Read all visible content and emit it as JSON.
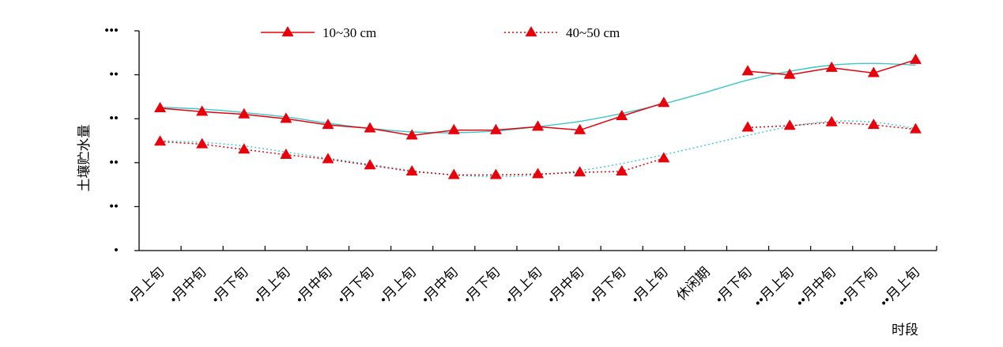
{
  "chart_data": {
    "type": "line",
    "ylabel": "土壤贮水量",
    "xlabel": "时段",
    "y_tick_labels": [
      "•",
      "••",
      "••",
      "••",
      "••",
      "•••"
    ],
    "x_tick_labels": [
      "•月上旬",
      "•月中旬",
      "•月下旬",
      "•月上旬",
      "•月中旬",
      "•月下旬",
      "•月上旬",
      "•月中旬",
      "•月下旬",
      "•月上旬",
      "•月中旬",
      "•月下旬",
      "•月上旬",
      "休闲期",
      "•月下旬",
      "••月上旬",
      "••月中旬",
      "••月下旬",
      "••月上旬"
    ],
    "ylim": [
      0,
      250
    ],
    "grid": false,
    "legend_position": "top",
    "series": [
      {
        "name": "10~30 cm",
        "style": "solid",
        "color": "#e8000b",
        "marker": "triangle",
        "x_index": [
          0,
          1,
          2,
          3,
          4,
          5,
          6,
          7,
          8,
          9,
          10,
          11,
          12,
          14,
          15,
          16,
          17,
          18
        ],
        "values": [
          162,
          158,
          155,
          150,
          143,
          139,
          131,
          137,
          137,
          141,
          137,
          153,
          168,
          204,
          200,
          208,
          202,
          217
        ]
      },
      {
        "name": "40~50 cm",
        "style": "dotted",
        "color": "#e8000b",
        "marker": "triangle",
        "x_index": [
          0,
          1,
          2,
          3,
          4,
          5,
          6,
          7,
          8,
          9,
          10,
          11,
          12,
          14,
          15,
          16,
          17,
          18
        ],
        "values": [
          124,
          121,
          115,
          109,
          104,
          97,
          90,
          86,
          86,
          87,
          89,
          90,
          105,
          140,
          142,
          146,
          143,
          138
        ]
      }
    ],
    "trend_lines": [
      {
        "color": "#3cc8c8",
        "style": "solid",
        "points": [
          [
            0,
            163
          ],
          [
            1,
            161
          ],
          [
            2,
            157
          ],
          [
            3,
            152
          ],
          [
            4,
            145
          ],
          [
            5,
            139
          ],
          [
            6,
            135
          ],
          [
            7,
            134
          ],
          [
            8,
            136
          ],
          [
            9,
            141
          ],
          [
            10,
            147
          ],
          [
            11,
            156
          ],
          [
            12,
            167
          ],
          [
            13,
            180
          ],
          [
            14,
            194
          ],
          [
            15,
            204
          ],
          [
            16,
            211
          ],
          [
            17,
            213
          ],
          [
            18,
            211
          ]
        ]
      },
      {
        "color": "#3cc8c8",
        "style": "dotted",
        "points": [
          [
            0,
            125
          ],
          [
            1,
            123
          ],
          [
            2,
            119
          ],
          [
            3,
            112
          ],
          [
            4,
            105
          ],
          [
            5,
            98
          ],
          [
            6,
            91
          ],
          [
            7,
            86
          ],
          [
            8,
            84
          ],
          [
            9,
            86
          ],
          [
            10,
            91
          ],
          [
            11,
            99
          ],
          [
            12,
            109
          ],
          [
            13,
            120
          ],
          [
            14,
            131
          ],
          [
            15,
            141
          ],
          [
            16,
            147
          ],
          [
            17,
            146
          ],
          [
            18,
            139
          ]
        ]
      }
    ]
  }
}
